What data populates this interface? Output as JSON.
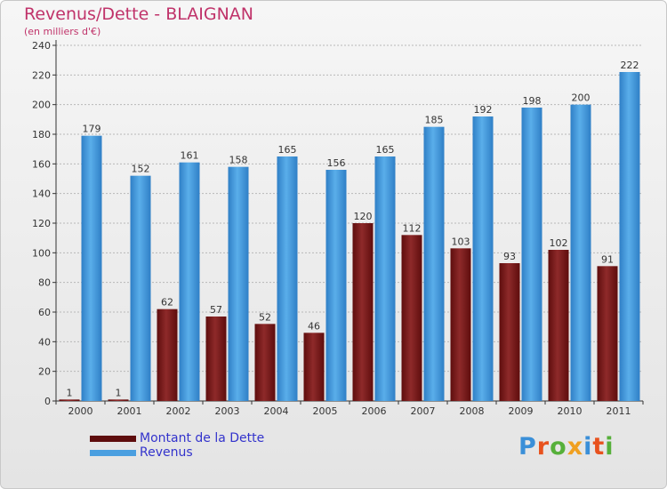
{
  "header": {
    "title": "Revenus/Dette - BLAIGNAN",
    "subtitle": "(en milliers d'€)"
  },
  "logo": {
    "text": "Proxiti",
    "colors": [
      "#3a8fd8",
      "#e8521e",
      "#56b03a",
      "#f0a020",
      "#3a8fd8",
      "#e8521e",
      "#56b03a"
    ]
  },
  "chart_data": {
    "type": "bar",
    "title": "Revenus/Dette - BLAIGNAN",
    "subtitle": "(en milliers d'€)",
    "xlabel": "",
    "ylabel": "",
    "categories": [
      "2000",
      "2001",
      "2002",
      "2003",
      "2004",
      "2005",
      "2006",
      "2007",
      "2008",
      "2009",
      "2010",
      "2011"
    ],
    "series": [
      {
        "name": "Montant de la Dette",
        "color": "#7a1a1a",
        "values": [
          1,
          1,
          62,
          57,
          52,
          46,
          120,
          112,
          103,
          93,
          102,
          91
        ]
      },
      {
        "name": "Revenus",
        "color": "#4a9fe0",
        "values": [
          179,
          152,
          161,
          158,
          165,
          156,
          165,
          185,
          192,
          198,
          200,
          222
        ]
      }
    ],
    "ylim": [
      0,
      240
    ],
    "yticks": [
      0,
      20,
      40,
      60,
      80,
      100,
      120,
      140,
      160,
      180,
      200,
      220,
      240
    ],
    "grid": true,
    "legend": "bottom-left"
  }
}
